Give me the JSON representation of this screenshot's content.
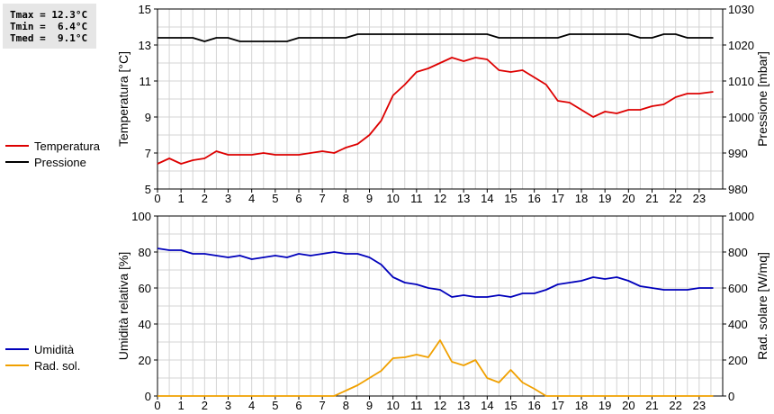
{
  "stats": {
    "tmax": "Tmax = 12.3°C",
    "tmin": "Tmin =  6.4°C",
    "tmed": "Tmed =  9.1°C"
  },
  "colors": {
    "temperature": "#dd0000",
    "pressure": "#000000",
    "humidity": "#0000bb",
    "solar": "#f0a000",
    "grid": "#d4d4d4"
  },
  "chart_data": [
    {
      "type": "line",
      "xlim": [
        0,
        24
      ],
      "x_ticks": [
        0,
        1,
        2,
        3,
        4,
        5,
        6,
        7,
        8,
        9,
        10,
        11,
        12,
        13,
        14,
        15,
        16,
        17,
        18,
        19,
        20,
        21,
        22,
        23
      ],
      "ylabel_left": "Temperatura [°C]",
      "ylim_left": [
        5,
        15
      ],
      "y_ticks_left": [
        5,
        7,
        9,
        11,
        13,
        15
      ],
      "ylabel_right": "Pressione [mbar]",
      "ylim_right": [
        980,
        1030
      ],
      "y_ticks_right": [
        980,
        990,
        1000,
        1010,
        1020,
        1030
      ],
      "legend_position": "left",
      "series": [
        {
          "name": "Temperatura",
          "axis": "left",
          "color": "#dd0000",
          "x": [
            0,
            0.5,
            1,
            1.5,
            2,
            2.5,
            3,
            3.5,
            4,
            4.5,
            5,
            5.5,
            6,
            6.5,
            7,
            7.5,
            8,
            8.5,
            9,
            9.5,
            10,
            10.5,
            11,
            11.5,
            12,
            12.5,
            13,
            13.5,
            14,
            14.5,
            15,
            15.5,
            16,
            16.5,
            17,
            17.5,
            18,
            18.5,
            19,
            19.5,
            20,
            20.5,
            21,
            21.5,
            22,
            22.5,
            23,
            23.6
          ],
          "y": [
            6.4,
            6.7,
            6.4,
            6.6,
            6.7,
            7.1,
            6.9,
            6.9,
            6.9,
            7.0,
            6.9,
            6.9,
            6.9,
            7.0,
            7.1,
            7.0,
            7.3,
            7.5,
            8.0,
            8.8,
            10.2,
            10.8,
            11.5,
            11.7,
            12.0,
            12.3,
            12.1,
            12.3,
            12.2,
            11.6,
            11.5,
            11.6,
            11.2,
            10.8,
            9.9,
            9.8,
            9.4,
            9.0,
            9.3,
            9.2,
            9.4,
            9.4,
            9.6,
            9.7,
            10.1,
            10.3,
            10.3,
            10.4
          ]
        },
        {
          "name": "Pressione",
          "axis": "right",
          "color": "#000000",
          "x": [
            0,
            1.5,
            2,
            2.5,
            3,
            3.5,
            4,
            5.5,
            6,
            7.5,
            8,
            8.5,
            14,
            14.5,
            17,
            17.5,
            20,
            20.5,
            21,
            21.5,
            22,
            22.5,
            23,
            23.6
          ],
          "y": [
            1022,
            1022,
            1021,
            1022,
            1022,
            1021,
            1021,
            1021,
            1022,
            1022,
            1022,
            1023,
            1023,
            1022,
            1022,
            1023,
            1023,
            1022,
            1022,
            1023,
            1023,
            1022,
            1022,
            1022
          ]
        }
      ]
    },
    {
      "type": "line",
      "xlim": [
        0,
        24
      ],
      "x_ticks": [
        0,
        1,
        2,
        3,
        4,
        5,
        6,
        7,
        8,
        9,
        10,
        11,
        12,
        13,
        14,
        15,
        16,
        17,
        18,
        19,
        20,
        21,
        22,
        23
      ],
      "ylabel_left": "Umidità relativa [%]",
      "ylim_left": [
        0,
        100
      ],
      "y_ticks_left": [
        0,
        20,
        40,
        60,
        80,
        100
      ],
      "ylabel_right": "Rad. solare [W/mq]",
      "ylim_right": [
        0,
        1000
      ],
      "y_ticks_right": [
        0,
        200,
        400,
        600,
        800,
        1000
      ],
      "legend_position": "left",
      "series": [
        {
          "name": "Umidità",
          "axis": "left",
          "color": "#0000bb",
          "x": [
            0,
            0.5,
            1,
            1.5,
            2,
            2.5,
            3,
            3.5,
            4,
            4.5,
            5,
            5.5,
            6,
            6.5,
            7,
            7.5,
            8,
            8.5,
            9,
            9.5,
            10,
            10.5,
            11,
            11.5,
            12,
            12.5,
            13,
            13.5,
            14,
            14.5,
            15,
            15.5,
            16,
            16.5,
            17,
            17.5,
            18,
            18.5,
            19,
            19.5,
            20,
            20.5,
            21,
            21.5,
            22,
            22.5,
            23,
            23.6
          ],
          "y": [
            82,
            81,
            81,
            79,
            79,
            78,
            77,
            78,
            76,
            77,
            78,
            77,
            79,
            78,
            79,
            80,
            79,
            79,
            77,
            73,
            66,
            63,
            62,
            60,
            59,
            55,
            56,
            55,
            55,
            56,
            55,
            57,
            57,
            59,
            62,
            63,
            64,
            66,
            65,
            66,
            64,
            61,
            60,
            59,
            59,
            59,
            60,
            60
          ]
        },
        {
          "name": "Rad. sol.",
          "axis": "right",
          "color": "#f0a000",
          "x": [
            0,
            7.5,
            8,
            8.5,
            9,
            9.5,
            10,
            10.5,
            11,
            11.5,
            12,
            12.5,
            13,
            13.5,
            14,
            14.5,
            15,
            15.5,
            16,
            16.5,
            17,
            23.6
          ],
          "y": [
            0,
            0,
            30,
            60,
            100,
            140,
            210,
            215,
            230,
            215,
            310,
            190,
            170,
            200,
            100,
            75,
            145,
            75,
            40,
            0,
            0,
            0
          ]
        }
      ]
    }
  ]
}
